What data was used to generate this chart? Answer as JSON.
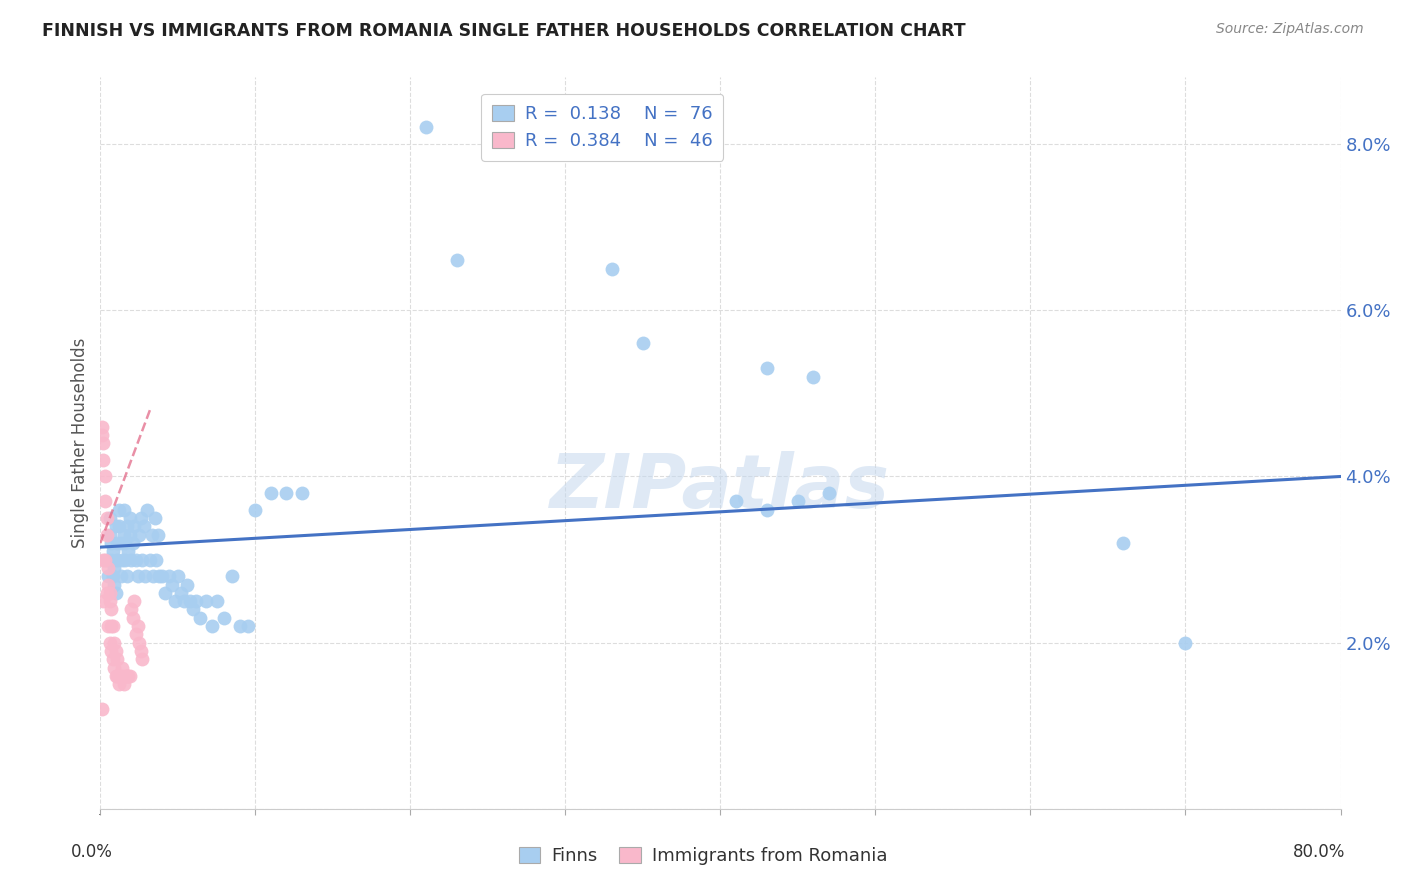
{
  "title": "FINNISH VS IMMIGRANTS FROM ROMANIA SINGLE FATHER HOUSEHOLDS CORRELATION CHART",
  "source": "Source: ZipAtlas.com",
  "ylabel": "Single Father Households",
  "ytick_labels": [
    "",
    "2.0%",
    "4.0%",
    "6.0%",
    "8.0%"
  ],
  "yticks": [
    0.0,
    0.02,
    0.04,
    0.06,
    0.08
  ],
  "xlim": [
    0.0,
    0.8
  ],
  "ylim": [
    0.0,
    0.088
  ],
  "xtick_positions": [
    0.0,
    0.1,
    0.2,
    0.3,
    0.4,
    0.5,
    0.6,
    0.7,
    0.8
  ],
  "legend1_R": "0.138",
  "legend1_N": "76",
  "legend2_R": "0.384",
  "legend2_N": "46",
  "color_finns": "#a8cef0",
  "color_romania": "#f9b8cb",
  "color_trendline_finns": "#4472c4",
  "color_trendline_romania": "#e06080",
  "color_tick_labels": "#4472c4",
  "watermark": "ZIPatlas",
  "finns_x": [
    0.004,
    0.005,
    0.006,
    0.006,
    0.007,
    0.007,
    0.008,
    0.008,
    0.009,
    0.009,
    0.01,
    0.01,
    0.011,
    0.011,
    0.012,
    0.012,
    0.013,
    0.013,
    0.014,
    0.015,
    0.015,
    0.016,
    0.016,
    0.017,
    0.017,
    0.018,
    0.019,
    0.019,
    0.02,
    0.021,
    0.022,
    0.023,
    0.024,
    0.025,
    0.026,
    0.027,
    0.028,
    0.029,
    0.03,
    0.032,
    0.033,
    0.034,
    0.035,
    0.036,
    0.037,
    0.038,
    0.04,
    0.042,
    0.044,
    0.046,
    0.048,
    0.05,
    0.052,
    0.054,
    0.056,
    0.058,
    0.06,
    0.062,
    0.064,
    0.068,
    0.072,
    0.075,
    0.08,
    0.085,
    0.09,
    0.095,
    0.1,
    0.11,
    0.12,
    0.13,
    0.41,
    0.43,
    0.45,
    0.47,
    0.66,
    0.7
  ],
  "finns_y": [
    0.03,
    0.028,
    0.033,
    0.035,
    0.03,
    0.032,
    0.028,
    0.031,
    0.027,
    0.029,
    0.026,
    0.034,
    0.032,
    0.03,
    0.034,
    0.036,
    0.028,
    0.032,
    0.03,
    0.033,
    0.036,
    0.03,
    0.032,
    0.034,
    0.028,
    0.031,
    0.033,
    0.035,
    0.03,
    0.032,
    0.034,
    0.03,
    0.028,
    0.033,
    0.035,
    0.03,
    0.034,
    0.028,
    0.036,
    0.03,
    0.033,
    0.028,
    0.035,
    0.03,
    0.033,
    0.028,
    0.028,
    0.026,
    0.028,
    0.027,
    0.025,
    0.028,
    0.026,
    0.025,
    0.027,
    0.025,
    0.024,
    0.025,
    0.023,
    0.025,
    0.022,
    0.025,
    0.023,
    0.028,
    0.022,
    0.022,
    0.036,
    0.038,
    0.038,
    0.038,
    0.037,
    0.036,
    0.037,
    0.038,
    0.032,
    0.02
  ],
  "finns_x_outliers": [
    0.21,
    0.23,
    0.33,
    0.35,
    0.43,
    0.46
  ],
  "finns_y_outliers": [
    0.082,
    0.066,
    0.065,
    0.056,
    0.053,
    0.052
  ],
  "romania_x": [
    0.001,
    0.001,
    0.001,
    0.002,
    0.002,
    0.002,
    0.002,
    0.003,
    0.003,
    0.003,
    0.004,
    0.004,
    0.004,
    0.005,
    0.005,
    0.005,
    0.006,
    0.006,
    0.006,
    0.007,
    0.007,
    0.007,
    0.008,
    0.008,
    0.009,
    0.009,
    0.01,
    0.01,
    0.011,
    0.011,
    0.012,
    0.013,
    0.014,
    0.015,
    0.016,
    0.017,
    0.018,
    0.019,
    0.02,
    0.021,
    0.022,
    0.023,
    0.024,
    0.025,
    0.026,
    0.027
  ],
  "romania_y": [
    0.012,
    0.045,
    0.046,
    0.03,
    0.042,
    0.044,
    0.025,
    0.03,
    0.037,
    0.04,
    0.026,
    0.033,
    0.035,
    0.022,
    0.027,
    0.029,
    0.02,
    0.025,
    0.026,
    0.019,
    0.022,
    0.024,
    0.018,
    0.022,
    0.017,
    0.02,
    0.016,
    0.019,
    0.016,
    0.018,
    0.015,
    0.016,
    0.017,
    0.015,
    0.016,
    0.016,
    0.016,
    0.016,
    0.024,
    0.023,
    0.025,
    0.021,
    0.022,
    0.02,
    0.019,
    0.018
  ],
  "finns_trend_x": [
    0.0,
    0.8
  ],
  "finns_trend_y": [
    0.0315,
    0.04
  ],
  "romania_trend_x": [
    0.0,
    0.032
  ],
  "romania_trend_y": [
    0.032,
    0.048
  ]
}
